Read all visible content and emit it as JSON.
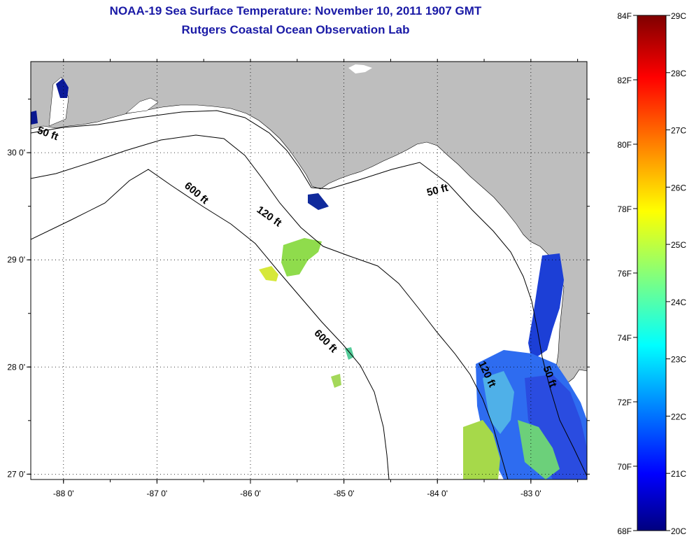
{
  "title": "NOAA-19 Sea Surface Temperature:  November 10, 2011 1907 GMT",
  "subtitle": "Rutgers Coastal Ocean Observation Lab",
  "map": {
    "lon_range": [
      -88.35,
      -82.4
    ],
    "lat_range": [
      26.95,
      30.85
    ],
    "lon_ticks": [
      {
        "value": -88,
        "label": "-88 0'"
      },
      {
        "value": -87,
        "label": "-87 0'"
      },
      {
        "value": -86,
        "label": "-86 0'"
      },
      {
        "value": -85,
        "label": "-85 0'"
      },
      {
        "value": -84,
        "label": "-84 0'"
      },
      {
        "value": -83,
        "label": "-83 0'"
      }
    ],
    "lat_ticks": [
      {
        "value": 30,
        "label": "30 0'"
      },
      {
        "value": 29,
        "label": "29 0'"
      },
      {
        "value": 28,
        "label": "28 0'"
      },
      {
        "value": 27,
        "label": "27 0'"
      }
    ],
    "depth_labels": [
      {
        "text": "50 ft",
        "lon": -88.18,
        "lat": 30.15
      },
      {
        "text": "600 ft",
        "lon": -86.6,
        "lat": 29.6
      },
      {
        "text": "120 ft",
        "lon": -85.82,
        "lat": 29.38
      },
      {
        "text": "50 ft",
        "lon": -83.99,
        "lat": 29.62
      },
      {
        "text": "600 ft",
        "lon": -85.22,
        "lat": 28.22
      },
      {
        "text": "120 ft",
        "lon": -83.5,
        "lat": 27.92
      },
      {
        "text": "50 ft",
        "lon": -82.83,
        "lat": 27.9
      }
    ],
    "colors": {
      "land": "#bebebe",
      "ocean": "#ffffff",
      "contour": "#000000"
    }
  },
  "colorbar": {
    "f_labels": [
      "84F",
      "82F",
      "80F",
      "78F",
      "76F",
      "74F",
      "72F",
      "70F",
      "68F"
    ],
    "c_labels": [
      "29C",
      "28C",
      "27C",
      "26C",
      "25C",
      "24C",
      "23C",
      "22C",
      "21C",
      "20C"
    ],
    "range_c": [
      20,
      29
    ],
    "colormap": "jet"
  }
}
